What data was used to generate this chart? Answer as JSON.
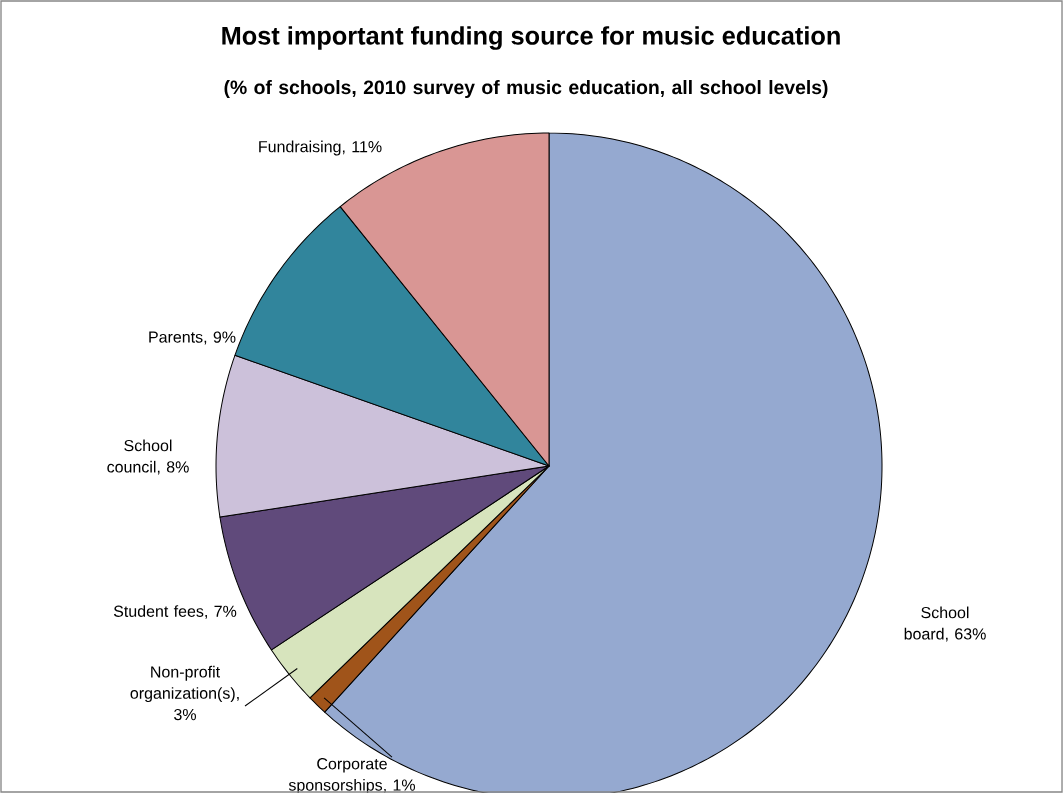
{
  "chart_data": {
    "type": "pie",
    "title": "Most important funding source for music education",
    "subtitle": "(% of schools, 2010 survey of music education, all school levels)",
    "categories": [
      "School board",
      "Corporate sponsorships",
      "Non-profit organization(s)",
      "Student fees",
      "School council",
      "Parents",
      "Fundraising"
    ],
    "values": [
      63,
      1,
      3,
      7,
      8,
      9,
      11
    ],
    "value_labels": [
      ", 63%",
      ", 1%",
      ", 3%",
      ", 7%",
      ", 8%",
      ", 9%",
      ", 11%"
    ],
    "colors": [
      "#95a9d0",
      "#a0541a",
      "#d7e4bd",
      "#604a7b",
      "#ccc1da",
      "#31859c",
      "#d99694"
    ]
  }
}
